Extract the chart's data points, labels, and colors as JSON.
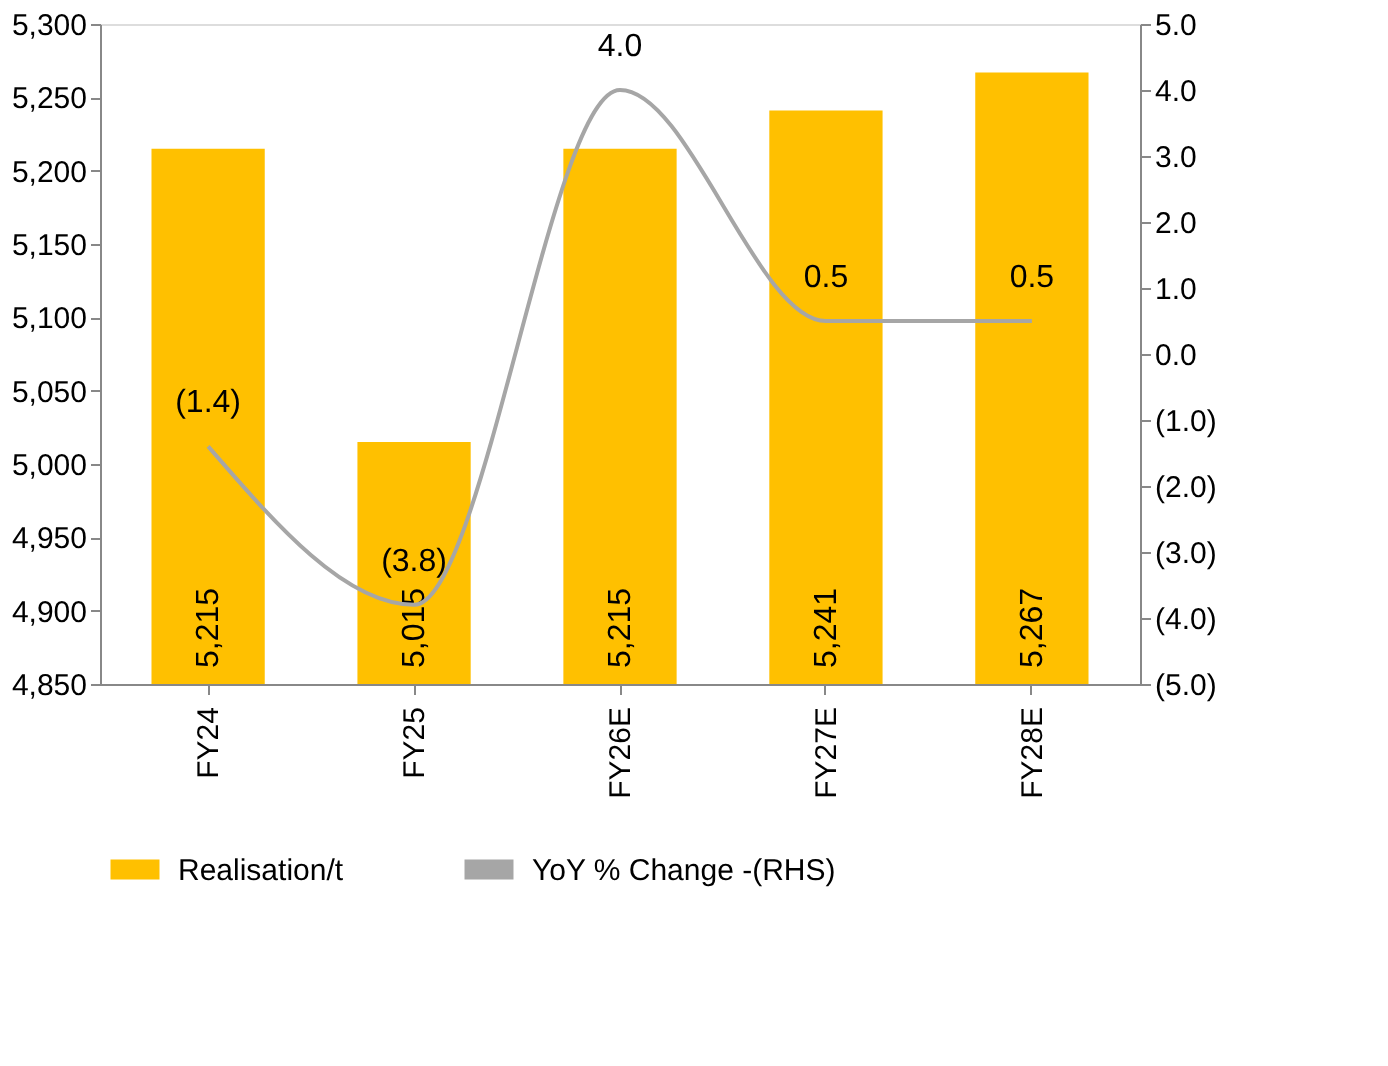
{
  "chart_data": {
    "type": "bar",
    "categories": [
      "FY24",
      "FY25",
      "FY26E",
      "FY27E",
      "FY28E"
    ],
    "series": [
      {
        "name": "Realisation/t",
        "color": "#ffc000",
        "values": [
          5215,
          5015,
          5215,
          5241,
          5267
        ],
        "value_labels": [
          "5,215",
          "5,015",
          "5,215",
          "5,241",
          "5,267"
        ]
      },
      {
        "name": "YoY % Change -(RHS)",
        "type": "line",
        "axis": "y2",
        "color": "#a6a6a6",
        "values": [
          -1.4,
          -3.8,
          4.0,
          0.5,
          0.5
        ],
        "value_labels": [
          "(1.4)",
          "(3.8)",
          "4.0",
          "0.5",
          "0.5"
        ]
      }
    ],
    "ylim": [
      4850,
      5300
    ],
    "yticks": [
      {
        "value": 4850,
        "label": "4,850"
      },
      {
        "value": 4900,
        "label": "4,900"
      },
      {
        "value": 4950,
        "label": "4,950"
      },
      {
        "value": 5000,
        "label": "5,000"
      },
      {
        "value": 5050,
        "label": "5,050"
      },
      {
        "value": 5100,
        "label": "5,100"
      },
      {
        "value": 5150,
        "label": "5,150"
      },
      {
        "value": 5200,
        "label": "5,200"
      },
      {
        "value": 5250,
        "label": "5,250"
      },
      {
        "value": 5300,
        "label": "5,300"
      }
    ],
    "y2lim": [
      -5,
      5
    ],
    "y2ticks": [
      {
        "value": -5,
        "label": "(5.0)"
      },
      {
        "value": -4,
        "label": "(4.0)"
      },
      {
        "value": -3,
        "label": "(3.0)"
      },
      {
        "value": -2,
        "label": "(2.0)"
      },
      {
        "value": -1,
        "label": "(1.0)"
      },
      {
        "value": 0,
        "label": "0.0"
      },
      {
        "value": 1,
        "label": "1.0"
      },
      {
        "value": 2,
        "label": "2.0"
      },
      {
        "value": 3,
        "label": "3.0"
      },
      {
        "value": 4,
        "label": "4.0"
      },
      {
        "value": 5,
        "label": "5.0"
      }
    ],
    "grid": false,
    "legend": "bottom",
    "marker": "none",
    "line_style": "solid"
  }
}
